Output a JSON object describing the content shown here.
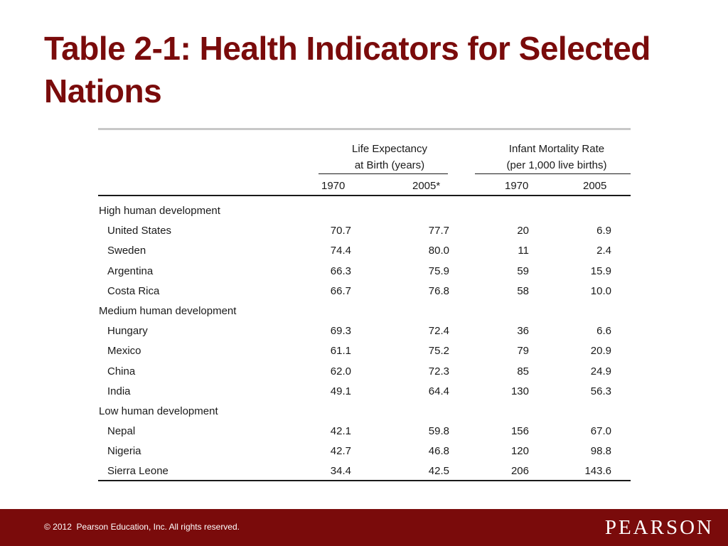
{
  "slide": {
    "title": "Table 2-1: Health Indicators for Selected Nations"
  },
  "table": {
    "group_headers": [
      {
        "line1": "Life Expectancy",
        "line2": "at Birth (years)"
      },
      {
        "line1": "Infant Mortality Rate",
        "line2": "(per 1,000 live births)"
      }
    ],
    "columns": [
      "1970",
      "2005*",
      "1970",
      "2005"
    ],
    "sections": [
      {
        "label": "High human development",
        "rows": [
          {
            "country": "United States",
            "values": [
              "70.7",
              "77.7",
              "20",
              "6.9"
            ]
          },
          {
            "country": "Sweden",
            "values": [
              "74.4",
              "80.0",
              "11",
              "2.4"
            ]
          },
          {
            "country": "Argentina",
            "values": [
              "66.3",
              "75.9",
              "59",
              "15.9"
            ]
          },
          {
            "country": "Costa Rica",
            "values": [
              "66.7",
              "76.8",
              "58",
              "10.0"
            ]
          }
        ]
      },
      {
        "label": "Medium human development",
        "rows": [
          {
            "country": "Hungary",
            "values": [
              "69.3",
              "72.4",
              "36",
              "6.6"
            ]
          },
          {
            "country": "Mexico",
            "values": [
              "61.1",
              "75.2",
              "79",
              "20.9"
            ]
          },
          {
            "country": "China",
            "values": [
              "62.0",
              "72.3",
              "85",
              "24.9"
            ]
          },
          {
            "country": "India",
            "values": [
              "49.1",
              "64.4",
              "130",
              "56.3"
            ]
          }
        ]
      },
      {
        "label": "Low human development",
        "rows": [
          {
            "country": "Nepal",
            "values": [
              "42.1",
              "59.8",
              "156",
              "67.0"
            ]
          },
          {
            "country": "Nigeria",
            "values": [
              "42.7",
              "46.8",
              "120",
              "98.8"
            ]
          },
          {
            "country": "Sierra Leone",
            "values": [
              "34.4",
              "42.5",
              "206",
              "143.6"
            ]
          }
        ]
      }
    ]
  },
  "footer": {
    "copyright": "© 2012  Pearson Education, Inc. All rights reserved.",
    "brand": "PEARSON"
  },
  "colors": {
    "title": "#7a0b0b",
    "footer_background": "#7a0b0b",
    "footer_text": "#ffffff"
  }
}
